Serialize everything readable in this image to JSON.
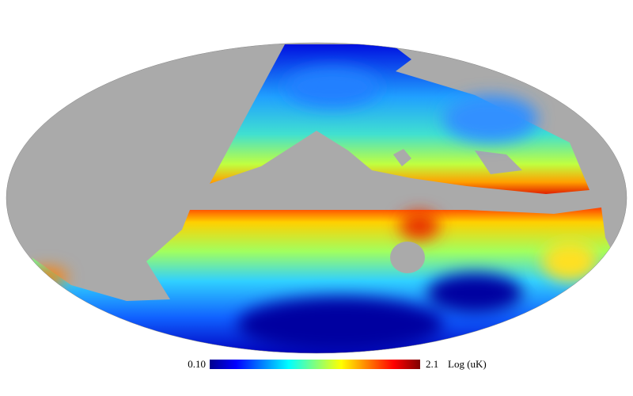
{
  "colorbar": {
    "min": "0.10",
    "max": "2.1",
    "unit": "Log (uK)"
  }
}
